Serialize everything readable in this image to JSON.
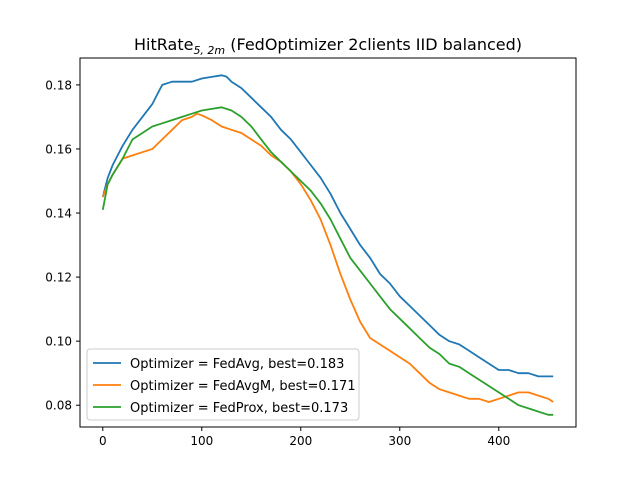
{
  "chart_data": {
    "type": "line",
    "title_main": "HitRate",
    "title_sub": "5, 2m",
    "title_rest": " (FedOptimizer 2clients IID balanced)",
    "xlabel": "",
    "ylabel": "",
    "xlim": [
      -23,
      478
    ],
    "ylim": [
      0.0732,
      0.1884
    ],
    "xticks": [
      0,
      100,
      200,
      300,
      400
    ],
    "xtick_labels": [
      "0",
      "100",
      "200",
      "300",
      "400"
    ],
    "yticks": [
      0.08,
      0.1,
      0.12,
      0.14,
      0.16,
      0.18
    ],
    "ytick_labels": [
      "0.08",
      "0.10",
      "0.12",
      "0.14",
      "0.16",
      "0.18"
    ],
    "grid": false,
    "legend_position": "lower-left",
    "series": [
      {
        "name": "Optimizer = FedAvg, best=0.183",
        "color": "#1f77b4",
        "x": [
          0,
          5,
          10,
          20,
          30,
          40,
          50,
          55,
          60,
          70,
          80,
          90,
          100,
          110,
          120,
          125,
          130,
          140,
          150,
          160,
          170,
          180,
          190,
          200,
          210,
          220,
          230,
          240,
          250,
          260,
          270,
          280,
          290,
          300,
          310,
          320,
          330,
          340,
          350,
          360,
          370,
          380,
          390,
          400,
          410,
          420,
          430,
          440,
          450,
          455
        ],
        "y": [
          0.145,
          0.151,
          0.155,
          0.161,
          0.166,
          0.17,
          0.174,
          0.177,
          0.18,
          0.181,
          0.181,
          0.181,
          0.182,
          0.1825,
          0.183,
          0.1826,
          0.181,
          0.179,
          0.176,
          0.173,
          0.17,
          0.166,
          0.163,
          0.159,
          0.155,
          0.151,
          0.146,
          0.14,
          0.135,
          0.13,
          0.126,
          0.121,
          0.118,
          0.114,
          0.111,
          0.108,
          0.105,
          0.102,
          0.1,
          0.099,
          0.097,
          0.095,
          0.093,
          0.091,
          0.091,
          0.09,
          0.09,
          0.089,
          0.089,
          0.089
        ]
      },
      {
        "name": "Optimizer = FedAvgM, best=0.171",
        "color": "#ff7f0e",
        "x": [
          0,
          5,
          10,
          20,
          30,
          40,
          50,
          60,
          70,
          80,
          90,
          95,
          100,
          110,
          120,
          130,
          140,
          150,
          160,
          170,
          180,
          190,
          200,
          210,
          220,
          230,
          240,
          250,
          260,
          270,
          280,
          290,
          300,
          310,
          320,
          330,
          340,
          350,
          360,
          370,
          380,
          390,
          400,
          410,
          420,
          430,
          440,
          450,
          455
        ],
        "y": [
          0.145,
          0.149,
          0.152,
          0.157,
          0.158,
          0.159,
          0.16,
          0.163,
          0.166,
          0.169,
          0.17,
          0.171,
          0.1705,
          0.169,
          0.167,
          0.166,
          0.165,
          0.163,
          0.161,
          0.158,
          0.156,
          0.153,
          0.149,
          0.144,
          0.138,
          0.13,
          0.121,
          0.113,
          0.106,
          0.101,
          0.099,
          0.097,
          0.095,
          0.093,
          0.09,
          0.087,
          0.085,
          0.084,
          0.083,
          0.082,
          0.082,
          0.081,
          0.082,
          0.083,
          0.084,
          0.084,
          0.083,
          0.082,
          0.081
        ]
      },
      {
        "name": "Optimizer = FedProx, best=0.173",
        "color": "#2ca02c",
        "x": [
          0,
          5,
          10,
          20,
          30,
          40,
          50,
          60,
          70,
          80,
          90,
          100,
          110,
          120,
          125,
          130,
          140,
          150,
          160,
          170,
          180,
          190,
          200,
          210,
          220,
          230,
          240,
          250,
          260,
          270,
          280,
          290,
          300,
          310,
          320,
          330,
          340,
          350,
          360,
          370,
          380,
          390,
          400,
          410,
          420,
          430,
          440,
          450,
          455
        ],
        "y": [
          0.141,
          0.149,
          0.152,
          0.157,
          0.163,
          0.165,
          0.167,
          0.168,
          0.169,
          0.17,
          0.171,
          0.172,
          0.1725,
          0.173,
          0.1725,
          0.172,
          0.17,
          0.167,
          0.163,
          0.159,
          0.156,
          0.153,
          0.15,
          0.147,
          0.143,
          0.138,
          0.132,
          0.126,
          0.122,
          0.118,
          0.114,
          0.11,
          0.107,
          0.104,
          0.101,
          0.098,
          0.096,
          0.093,
          0.092,
          0.09,
          0.088,
          0.086,
          0.084,
          0.082,
          0.08,
          0.079,
          0.078,
          0.077,
          0.077
        ]
      }
    ]
  }
}
